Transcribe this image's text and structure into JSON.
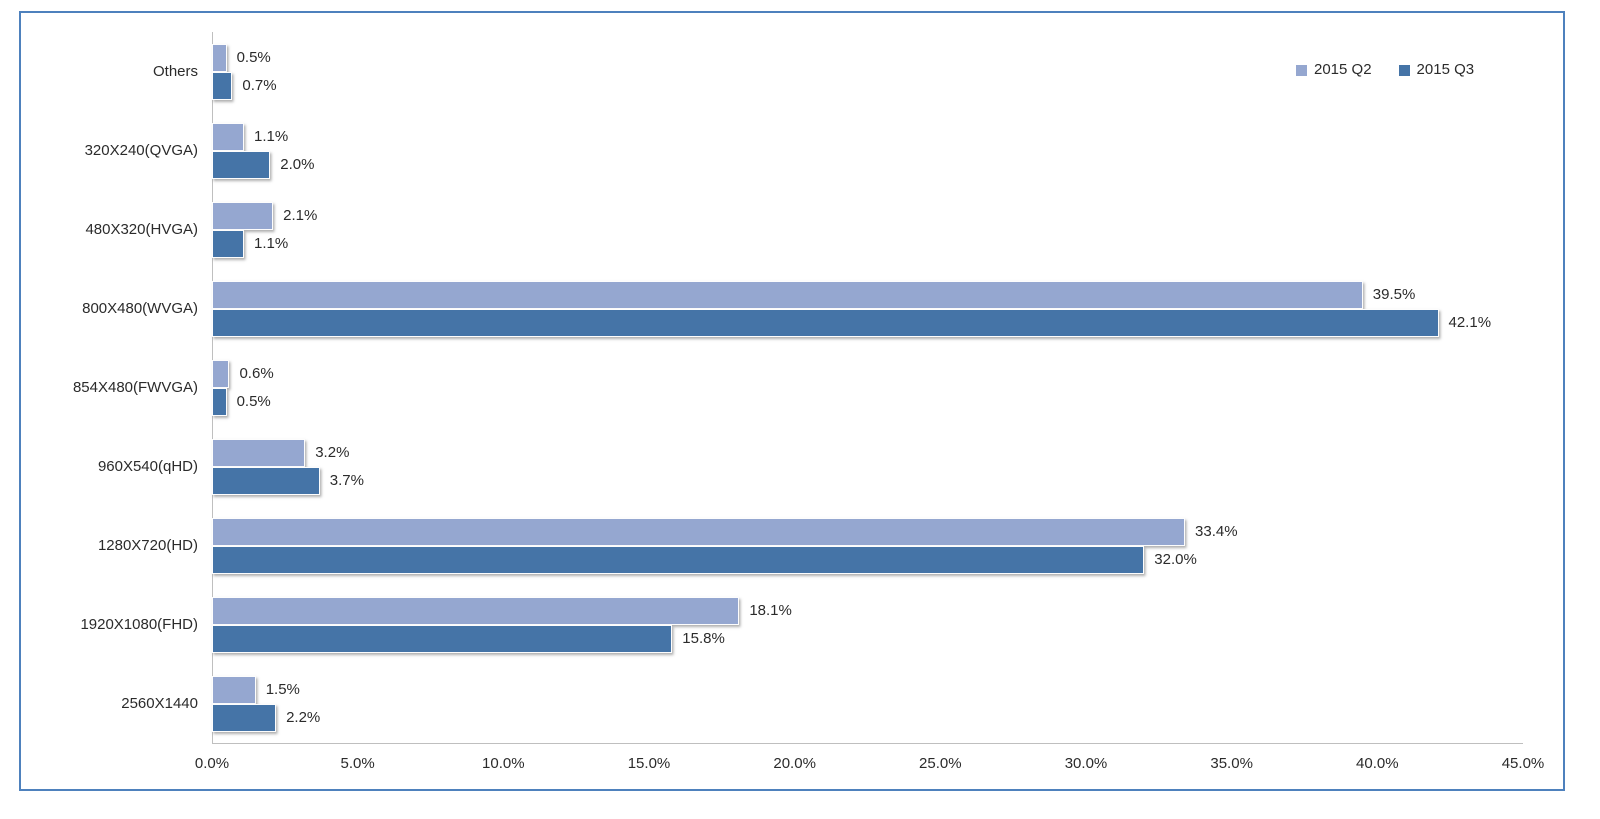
{
  "chart_data": {
    "type": "bar",
    "orientation": "horizontal",
    "title": "",
    "xlabel": "",
    "ylabel": "",
    "categories": [
      "Others",
      "320X240(QVGA)",
      "480X320(HVGA)",
      "800X480(WVGA)",
      "854X480(FWVGA)",
      "960X540(qHD)",
      "1280X720(HD)",
      "1920X1080(FHD)",
      "2560X1440"
    ],
    "series": [
      {
        "name": "2015 Q2",
        "color": "#95A7D0",
        "values": [
          0.5,
          1.1,
          2.1,
          39.5,
          0.6,
          3.2,
          33.4,
          18.1,
          1.5
        ]
      },
      {
        "name": "2015 Q3",
        "color": "#4574A7",
        "values": [
          0.7,
          2.0,
          1.1,
          42.1,
          0.5,
          3.7,
          32.0,
          15.8,
          2.2
        ]
      }
    ],
    "data_labels": {
      "2015 Q2": [
        "0.5%",
        "1.1%",
        "2.1%",
        "39.5%",
        "0.6%",
        "3.2%",
        "33.4%",
        "18.1%",
        "1.5%"
      ],
      "2015 Q3": [
        "0.7%",
        "2.0%",
        "1.1%",
        "42.1%",
        "0.5%",
        "3.7%",
        "32.0%",
        "15.8%",
        "2.2%"
      ]
    },
    "x_axis": {
      "min": 0,
      "max": 45,
      "tick_interval": 5,
      "tick_labels": [
        "0.0%",
        "5.0%",
        "10.0%",
        "15.0%",
        "20.0%",
        "25.0%",
        "30.0%",
        "35.0%",
        "40.0%",
        "45.0%"
      ]
    },
    "legend": {
      "position": "top-right",
      "entries": [
        "2015 Q2",
        "2015 Q3"
      ]
    },
    "gridlines": false
  },
  "colors": {
    "frame_border": "#4E81BD",
    "axis_line": "#BFBFBF",
    "series_q2": "#95A7D0",
    "series_q3": "#4574A7",
    "text": "#2B2B2B",
    "background": "#FFFFFF"
  }
}
